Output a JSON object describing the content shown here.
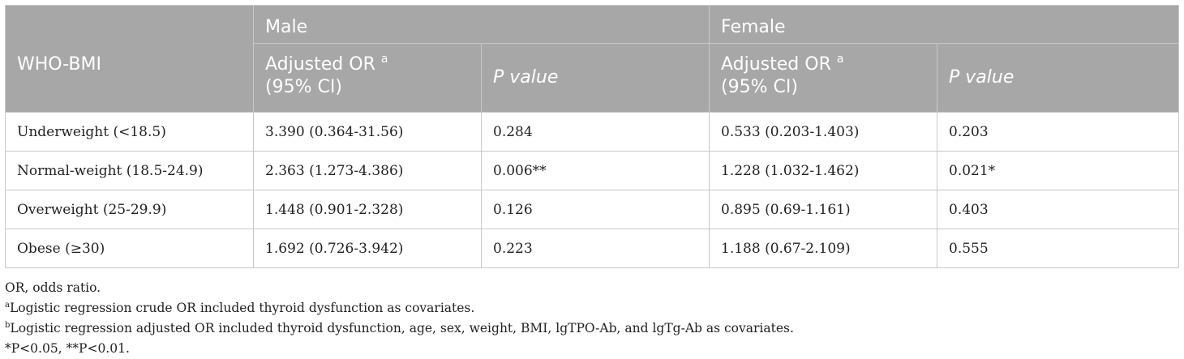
{
  "table": {
    "row_header": "WHO-BMI",
    "groups": [
      "Male",
      "Female"
    ],
    "subheaders": {
      "or_label": "Adjusted OR",
      "or_sup": "a",
      "ci_label": "(95% CI)",
      "p_label": "P value"
    },
    "rows": [
      {
        "label": "Underweight (<18.5)",
        "male_or": "3.390 (0.364-31.56)",
        "male_p": "0.284",
        "female_or": "0.533 (0.203-1.403)",
        "female_p": "0.203"
      },
      {
        "label": "Normal-weight (18.5-24.9)",
        "male_or": "2.363 (1.273-4.386)",
        "male_p": "0.006**",
        "female_or": "1.228 (1.032-1.462)",
        "female_p": "0.021*"
      },
      {
        "label": "Overweight (25-29.9)",
        "male_or": "1.448 (0.901-2.328)",
        "male_p": "0.126",
        "female_or": "0.895 (0.69-1.161)",
        "female_p": "0.403"
      },
      {
        "label": "Obese (≥30)",
        "male_or": "1.692 (0.726-3.942)",
        "male_p": "0.223",
        "female_or": "1.188 (0.67-2.109)",
        "female_p": "0.555"
      }
    ]
  },
  "footnotes": {
    "abbrev": "OR, odds ratio.",
    "a_sup": "a",
    "a_text": "Logistic regression crude OR included thyroid dysfunction as covariates.",
    "b_sup": "b",
    "b_text": "Logistic regression adjusted OR included thyroid dysfunction, age, sex, weight, BMI, lgTPO-Ab, and lgTg-Ab as covariates.",
    "significance": "*P<0.05, **P<0.01."
  }
}
